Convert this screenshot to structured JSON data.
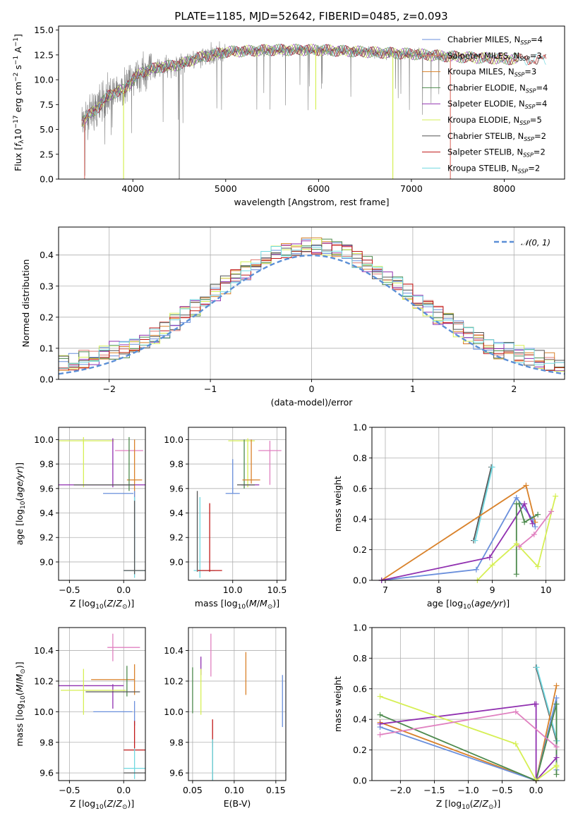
{
  "colors": {
    "Chabrier MILES": "#6a8fdc",
    "Salpeter MILES": "#e07b73",
    "Kroupa MILES": "#d9822b",
    "Chabrier ELODIE": "#4d8a4d",
    "Salpeter ELODIE": "#9030b0",
    "Kroupa ELODIE": "#d6ef55",
    "Chabrier STELIB": "#555555",
    "Salpeter STELIB": "#c01818",
    "Kroupa STELIB": "#70d8e0",
    "pinkline": "#e080c0",
    "obs": "#808080",
    "normal": "#5b8fd6"
  },
  "chart_data": [
    {
      "id": "spectrum",
      "type": "line",
      "title": "PLATE=1185, MJD=52642, FIBERID=0485, z=0.093",
      "xlabel": "wavelength [Angstrom, rest frame]",
      "ylabel": "Flux [f_λ10^-17 erg cm^-2 s^-1 A^-1]",
      "xlim": [
        3200,
        8650
      ],
      "ylim": [
        0,
        15.4
      ],
      "xticks": [
        "4000",
        "5000",
        "6000",
        "7000",
        "8000"
      ],
      "xtickv": [
        4000,
        5000,
        6000,
        7000,
        8000
      ],
      "yticks": [
        "0.0",
        "2.5",
        "5.0",
        "7.5",
        "10.0",
        "12.5",
        "15.0"
      ],
      "ytickv": [
        0,
        2.5,
        5,
        7.5,
        10,
        12.5,
        15
      ],
      "legend_position": "top-right",
      "legend": [
        {
          "name": "Chabrier MILES",
          "nssp": "4"
        },
        {
          "name": "Salpeter MILES",
          "nssp": "3"
        },
        {
          "name": "Kroupa MILES",
          "nssp": "3"
        },
        {
          "name": "Chabrier ELODIE",
          "nssp": "4"
        },
        {
          "name": "Salpeter ELODIE",
          "nssp": "4"
        },
        {
          "name": "Kroupa ELODIE",
          "nssp": "5"
        },
        {
          "name": "Chabrier STELIB",
          "nssp": "2"
        },
        {
          "name": "Salpeter STELIB",
          "nssp": "2"
        },
        {
          "name": "Kroupa STELIB",
          "nssp": "2"
        }
      ],
      "continuum": [
        [
          3450,
          5.8
        ],
        [
          3600,
          7
        ],
        [
          3750,
          8.5
        ],
        [
          3900,
          9
        ],
        [
          4000,
          10
        ],
        [
          4100,
          10.8
        ],
        [
          4300,
          11.3
        ],
        [
          4500,
          11.5
        ],
        [
          4700,
          12.2
        ],
        [
          5000,
          12.8
        ],
        [
          5500,
          13
        ],
        [
          6000,
          13
        ],
        [
          6500,
          12.8
        ],
        [
          7000,
          12.6
        ],
        [
          7500,
          12.3
        ],
        [
          8000,
          12.1
        ],
        [
          8500,
          12
        ]
      ],
      "obs_range": [
        3450,
        7450
      ],
      "model_range": [
        3450,
        8450
      ],
      "dips": [
        [
          3480,
          0,
          "Salpeter MILES"
        ],
        [
          3900,
          0,
          "Kroupa ELODIE"
        ],
        [
          4500,
          0,
          "obs"
        ],
        [
          5970,
          7,
          "Kroupa ELODIE"
        ],
        [
          6800,
          0,
          "Kroupa ELODIE"
        ],
        [
          7420,
          0,
          "Salpeter MILES"
        ]
      ]
    },
    {
      "id": "residuals",
      "type": "histogram",
      "xlabel": "(data-model)/error",
      "ylabel": "Normed distribution",
      "xlim": [
        -2.5,
        2.5
      ],
      "ylim": [
        0,
        0.49
      ],
      "xticks": [
        "−2",
        "−1",
        "0",
        "1",
        "2"
      ],
      "xtickv": [
        -2,
        -1,
        0,
        1,
        2
      ],
      "yticks": [
        "0.0",
        "0.1",
        "0.2",
        "0.3",
        "0.4"
      ],
      "ytickv": [
        0,
        0.1,
        0.2,
        0.3,
        0.4
      ],
      "legend_position": "top-right",
      "normal_label": "𝒩(0, 1)",
      "bins": 50
    },
    {
      "id": "age-vs-Z",
      "type": "errorbar",
      "xlabel": "Z [log10(Z/Z⊙)]",
      "ylabel": "age  [log10(age/yr)]",
      "xlim": [
        -0.6,
        0.2
      ],
      "ylim": [
        8.85,
        10.1
      ],
      "xticks": [
        "−0.5",
        "0.0"
      ],
      "xtickv": [
        -0.5,
        0
      ],
      "yticks": [
        "9.0",
        "9.2",
        "9.4",
        "9.6",
        "9.8",
        "10.0"
      ],
      "ytickv": [
        9.0,
        9.2,
        9.4,
        9.6,
        9.8,
        10.0
      ],
      "points": [
        {
          "c": "Kroupa ELODIE",
          "x": -0.37,
          "xe": 0.28,
          "y": 9.99,
          "ye": 0.03
        },
        {
          "c": "Kroupa ELODIE",
          "x": -0.37,
          "xe": 0.0,
          "y": 9.81,
          "ye": 0.2
        },
        {
          "c": "pinkline",
          "x": 0.05,
          "xe": 0.13,
          "y": 9.91,
          "ye": 0.0
        },
        {
          "c": "Salpeter ELODIE",
          "x": -0.1,
          "xe": 0.0,
          "y": 9.81,
          "ye": 0.2
        },
        {
          "c": "Kroupa MILES",
          "x": 0.1,
          "xe": 0.07,
          "y": 9.67,
          "ye": 0.33
        },
        {
          "c": "Chabrier ELODIE",
          "x": 0.05,
          "xe": 0.0,
          "y": 9.8,
          "ye": 0.22
        },
        {
          "c": "Salpeter ELODIE",
          "x": -0.2,
          "xe": 0.4,
          "y": 9.63,
          "ye": 0.0
        },
        {
          "c": "Chabrier STELIB",
          "x": -0.18,
          "xe": 0.28,
          "y": 9.63,
          "ye": 0.0
        },
        {
          "c": "Chabrier MILES",
          "x": -0.05,
          "xe": 0.14,
          "y": 9.56,
          "ye": 0.0
        },
        {
          "c": "Chabrier MILES",
          "x": 0.1,
          "xe": 0.0,
          "y": 9.3,
          "ye": 0.28
        },
        {
          "c": "Kroupa STELIB",
          "x": 0.1,
          "xe": 0.0,
          "y": 9.2,
          "ye": 0.33
        },
        {
          "c": "Chabrier STELIB",
          "x": 0.1,
          "xe": 0.0,
          "y": 9.2,
          "ye": 0.3
        },
        {
          "c": "Kroupa STELIB",
          "x": 0.1,
          "xe": 0.1,
          "y": 8.93,
          "ye": 0.0
        },
        {
          "c": "Chabrier STELIB",
          "x": 0.1,
          "xe": 0.1,
          "y": 8.93,
          "ye": 0.0
        }
      ]
    },
    {
      "id": "age-vs-mass",
      "type": "errorbar",
      "xlabel": "mass [log10(M/M⊙)]",
      "ylabel": "",
      "xlim": [
        9.5,
        10.6
      ],
      "ylim": [
        8.85,
        10.1
      ],
      "xticks": [
        "10.0",
        "10.5"
      ],
      "xtickv": [
        10.0,
        10.5
      ],
      "yticks": [
        "9.0",
        "9.2",
        "9.4",
        "9.6",
        "9.8",
        "10.0"
      ],
      "ytickv": [
        9.0,
        9.2,
        9.4,
        9.6,
        9.8,
        10.0
      ],
      "points": [
        {
          "c": "Kroupa ELODIE",
          "x": 10.1,
          "xe": 0.15,
          "y": 9.99,
          "ye": 0.0
        },
        {
          "c": "Kroupa ELODIE",
          "x": 10.17,
          "xe": 0.0,
          "y": 9.81,
          "ye": 0.2
        },
        {
          "c": "pinkline",
          "x": 10.42,
          "xe": 0.13,
          "y": 9.91,
          "ye": 0.0
        },
        {
          "c": "pinkline",
          "x": 10.42,
          "xe": 0.0,
          "y": 9.81,
          "ye": 0.18
        },
        {
          "c": "Chabrier ELODIE",
          "x": 10.13,
          "xe": 0.0,
          "y": 9.8,
          "ye": 0.2
        },
        {
          "c": "Kroupa MILES",
          "x": 10.21,
          "xe": 0.0,
          "y": 9.82,
          "ye": 0.18
        },
        {
          "c": "Kroupa MILES",
          "x": 10.21,
          "xe": 0.1,
          "y": 9.67,
          "ye": 0.0
        },
        {
          "c": "Salpeter ELODIE",
          "x": 10.2,
          "xe": 0.1,
          "y": 9.63,
          "ye": 0.0
        },
        {
          "c": "Chabrier STELIB",
          "x": 10.15,
          "xe": 0.1,
          "y": 9.63,
          "ye": 0.0
        },
        {
          "c": "Chabrier MILES",
          "x": 10.0,
          "xe": 0.0,
          "y": 9.7,
          "ye": 0.14
        },
        {
          "c": "Chabrier MILES",
          "x": 10.0,
          "xe": 0.08,
          "y": 9.56,
          "ye": 0.0
        },
        {
          "c": "Chabrier STELIB",
          "x": 9.6,
          "xe": 0.0,
          "y": 9.25,
          "ye": 0.33
        },
        {
          "c": "Kroupa STELIB",
          "x": 9.63,
          "xe": 0.0,
          "y": 9.2,
          "ye": 0.33
        },
        {
          "c": "Kroupa STELIB",
          "x": 9.68,
          "xe": 0.12,
          "y": 8.93,
          "ye": 0.0
        },
        {
          "c": "Salpeter STELIB",
          "x": 9.74,
          "xe": 0.0,
          "y": 9.2,
          "ye": 0.28
        },
        {
          "c": "Salpeter STELIB",
          "x": 9.74,
          "xe": 0.14,
          "y": 8.93,
          "ye": 0.0
        }
      ]
    },
    {
      "id": "weight-vs-age",
      "type": "line",
      "xlabel": "age  [log10(age/yr)]",
      "ylabel": "mass weight",
      "xlim": [
        6.75,
        10.35
      ],
      "ylim": [
        0,
        1.0
      ],
      "xticks": [
        "7",
        "8",
        "9",
        "10"
      ],
      "xtickv": [
        7,
        8,
        9,
        10
      ],
      "yticks": [
        "0.0",
        "0.2",
        "0.4",
        "0.6",
        "0.8",
        "1.0"
      ],
      "ytickv": [
        0,
        0.2,
        0.4,
        0.6,
        0.8,
        1.0
      ],
      "series": [
        {
          "c": "Chabrier STELIB",
          "x": [
            8.65,
            8.98
          ],
          "y": [
            0.26,
            0.74
          ]
        },
        {
          "c": "Kroupa STELIB",
          "x": [
            8.68,
            9.0
          ],
          "y": [
            0.26,
            0.74
          ]
        },
        {
          "c": "Kroupa MILES",
          "x": [
            6.93,
            9.63,
            9.8
          ],
          "y": [
            0.0,
            0.62,
            0.38
          ]
        },
        {
          "c": "Chabrier MILES",
          "x": [
            6.93,
            8.7,
            9.45,
            9.75,
            9.8
          ],
          "y": [
            0.0,
            0.07,
            0.54,
            0.4,
            0.35
          ]
        },
        {
          "c": "Salpeter ELODIE",
          "x": [
            6.93,
            8.95,
            9.6,
            9.75
          ],
          "y": [
            0.0,
            0.15,
            0.5,
            0.37
          ]
        },
        {
          "c": "Chabrier ELODIE",
          "x": [
            9.45,
            9.45,
            9.5,
            9.6,
            9.85
          ],
          "y": [
            0.04,
            0.5,
            0.5,
            0.38,
            0.43
          ]
        },
        {
          "c": "Kroupa ELODIE",
          "x": [
            8.72,
            9.0,
            9.45,
            9.85,
            10.18
          ],
          "y": [
            0.0,
            0.1,
            0.24,
            0.09,
            0.55
          ]
        },
        {
          "c": "pinkline",
          "x": [
            9.5,
            9.78,
            10.1
          ],
          "y": [
            0.22,
            0.3,
            0.45
          ]
        }
      ]
    },
    {
      "id": "mass-vs-Z",
      "type": "errorbar",
      "xlabel": "Z [log10(Z/Z⊙)]",
      "ylabel": "mass [log10(M/M⊙)]",
      "xlim": [
        -0.6,
        0.2
      ],
      "ylim": [
        9.55,
        10.55
      ],
      "xticks": [
        "−0.5",
        "0.0"
      ],
      "xtickv": [
        -0.5,
        0
      ],
      "yticks": [
        "9.6",
        "9.8",
        "10.0",
        "10.2",
        "10.4"
      ],
      "ytickv": [
        9.6,
        9.8,
        10.0,
        10.2,
        10.4
      ],
      "points": [
        {
          "c": "pinkline",
          "x": -0.1,
          "xe": 0.0,
          "y": 10.42,
          "ye": 0.09
        },
        {
          "c": "pinkline",
          "x": 0.0,
          "xe": 0.15,
          "y": 10.42,
          "ye": 0.0
        },
        {
          "c": "Kroupa MILES",
          "x": -0.1,
          "xe": 0.2,
          "y": 10.21,
          "ye": 0.0
        },
        {
          "c": "Kroupa MILES",
          "x": 0.1,
          "xe": 0.0,
          "y": 10.21,
          "ye": 0.1
        },
        {
          "c": "Chabrier ELODIE",
          "x": 0.03,
          "xe": 0.0,
          "y": 10.2,
          "ye": 0.1
        },
        {
          "c": "Salpeter ELODIE",
          "x": -0.3,
          "xe": 0.3,
          "y": 10.17,
          "ye": 0.0
        },
        {
          "c": "Salpeter ELODIE",
          "x": -0.1,
          "xe": 0.0,
          "y": 10.1,
          "ye": 0.08
        },
        {
          "c": "Kroupa ELODIE",
          "x": -0.37,
          "xe": 0.0,
          "y": 10.13,
          "ye": 0.15
        },
        {
          "c": "Kroupa ELODIE",
          "x": -0.28,
          "xe": 0.3,
          "y": 10.14,
          "ye": 0.0
        },
        {
          "c": "Chabrier STELIB",
          "x": -0.1,
          "xe": 0.25,
          "y": 10.13,
          "ye": 0.0
        },
        {
          "c": "Chabrier MILES",
          "x": -0.1,
          "xe": 0.18,
          "y": 10.0,
          "ye": 0.0
        },
        {
          "c": "Chabrier MILES",
          "x": 0.1,
          "xe": 0.0,
          "y": 9.99,
          "ye": 0.08
        },
        {
          "c": "Salpeter STELIB",
          "x": 0.1,
          "xe": 0.0,
          "y": 9.85,
          "ye": 0.09
        },
        {
          "c": "Salpeter STELIB",
          "x": 0.1,
          "xe": 0.1,
          "y": 9.75,
          "ye": 0.0
        },
        {
          "c": "Kroupa STELIB",
          "x": 0.1,
          "xe": 0.1,
          "y": 9.63,
          "ye": 0.0
        },
        {
          "c": "Kroupa STELIB",
          "x": 0.1,
          "xe": 0.0,
          "y": 9.66,
          "ye": 0.1
        },
        {
          "c": "Chabrier STELIB",
          "x": 0.1,
          "xe": 0.1,
          "y": 9.6,
          "ye": 0.0
        }
      ]
    },
    {
      "id": "mass-vs-ebv",
      "type": "errorbar",
      "xlabel": "E(B-V)",
      "ylabel": "",
      "xlim": [
        0.045,
        0.162
      ],
      "ylim": [
        9.55,
        10.55
      ],
      "xticks": [
        "0.05",
        "0.10",
        "0.15"
      ],
      "xtickv": [
        0.05,
        0.1,
        0.15
      ],
      "yticks": [
        "9.6",
        "9.8",
        "10.0",
        "10.2",
        "10.4"
      ],
      "ytickv": [
        9.6,
        9.8,
        10.0,
        10.2,
        10.4
      ],
      "points": [
        {
          "c": "pinkline",
          "x": 0.072,
          "xe": 0.0,
          "y": 10.37,
          "ye": 0.14
        },
        {
          "c": "Salpeter ELODIE",
          "x": 0.06,
          "xe": 0.0,
          "y": 10.3,
          "ye": 0.06
        },
        {
          "c": "Kroupa ELODIE",
          "x": 0.06,
          "xe": 0.0,
          "y": 10.13,
          "ye": 0.15
        },
        {
          "c": "Chabrier ELODIE",
          "x": 0.05,
          "xe": 0.0,
          "y": 10.14,
          "ye": 0.15
        },
        {
          "c": "Kroupa MILES",
          "x": 0.114,
          "xe": 0.0,
          "y": 10.25,
          "ye": 0.14
        },
        {
          "c": "Chabrier MILES",
          "x": 0.158,
          "xe": 0.0,
          "y": 10.07,
          "ye": 0.17
        },
        {
          "c": "Salpeter STELIB",
          "x": 0.074,
          "xe": 0.0,
          "y": 9.86,
          "ye": 0.09
        },
        {
          "c": "Chabrier STELIB",
          "x": 0.074,
          "xe": 0.0,
          "y": 9.68,
          "ye": 0.14
        },
        {
          "c": "Kroupa STELIB",
          "x": 0.074,
          "xe": 0.0,
          "y": 9.68,
          "ye": 0.14
        }
      ]
    },
    {
      "id": "weight-vs-Z",
      "type": "line",
      "xlabel": "Z [log10(Z/Z⊙)]",
      "ylabel": "mass weight",
      "xlim": [
        -2.42,
        0.42
      ],
      "ylim": [
        0,
        1.0
      ],
      "xticks": [
        "−2.0",
        "−1.5",
        "−1.0",
        "−0.5",
        "0.0"
      ],
      "xtickv": [
        -2.0,
        -1.5,
        -1.0,
        -0.5,
        0.0
      ],
      "yticks": [
        "0.0",
        "0.2",
        "0.4",
        "0.6",
        "0.8",
        "1.0"
      ],
      "ytickv": [
        0,
        0.2,
        0.4,
        0.6,
        0.8,
        1.0
      ],
      "series": [
        {
          "c": "Chabrier STELIB",
          "x": [
            0.0,
            0.3
          ],
          "y": [
            0.74,
            0.26
          ]
        },
        {
          "c": "Kroupa STELIB",
          "x": [
            0.01,
            0.31
          ],
          "y": [
            0.74,
            0.26
          ]
        },
        {
          "c": "Kroupa MILES",
          "x": [
            -2.3,
            0.0,
            0.3
          ],
          "y": [
            0.38,
            0.0,
            0.62
          ]
        },
        {
          "c": "Chabrier MILES",
          "x": [
            -2.3,
            0.0,
            0.3,
            0.3
          ],
          "y": [
            0.35,
            0.0,
            0.54,
            0.07
          ]
        },
        {
          "c": "Chabrier ELODIE",
          "x": [
            -2.3,
            0.0,
            0.3,
            0.3
          ],
          "y": [
            0.43,
            0.0,
            0.5,
            0.04
          ]
        },
        {
          "c": "Salpeter ELODIE",
          "x": [
            -2.3,
            -0.02,
            0.0,
            0.0,
            0.3
          ],
          "y": [
            0.37,
            0.5,
            0.5,
            0.0,
            0.15
          ]
        },
        {
          "c": "Kroupa ELODIE",
          "x": [
            -2.3,
            -0.3,
            0.0,
            0.3,
            0.3
          ],
          "y": [
            0.55,
            0.24,
            0.0,
            0.1,
            0.09
          ]
        },
        {
          "c": "pinkline",
          "x": [
            -2.3,
            -0.3,
            0.3
          ],
          "y": [
            0.3,
            0.45,
            0.22
          ]
        }
      ]
    }
  ],
  "text": {
    "title": "PLATE=1185, MJD=52642, FIBERID=0485, z=0.093"
  }
}
